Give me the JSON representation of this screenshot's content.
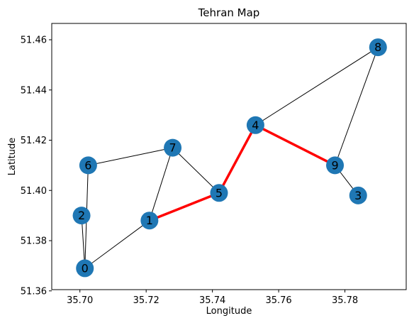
{
  "chart_data": {
    "type": "scatter",
    "title": "Tehran Map",
    "xlabel": "Longitude",
    "ylabel": "Latitude",
    "xlim": [
      35.6915,
      35.7985
    ],
    "ylim": [
      51.3605,
      51.4665
    ],
    "xticks": [
      {
        "value": 35.7,
        "label": "35.70"
      },
      {
        "value": 35.72,
        "label": "35.72"
      },
      {
        "value": 35.74,
        "label": "35.74"
      },
      {
        "value": 35.76,
        "label": "35.76"
      },
      {
        "value": 35.78,
        "label": "35.78"
      }
    ],
    "yticks": [
      {
        "value": 51.36,
        "label": "51.36"
      },
      {
        "value": 51.38,
        "label": "51.38"
      },
      {
        "value": 51.4,
        "label": "51.40"
      },
      {
        "value": 51.42,
        "label": "51.42"
      },
      {
        "value": 51.44,
        "label": "51.44"
      },
      {
        "value": 51.46,
        "label": "51.46"
      }
    ],
    "grid": false,
    "node_color": "#1f77b4",
    "edge_color": "#000000",
    "path_color": "#ff0000",
    "nodes": [
      {
        "label": "0",
        "x": 35.7015,
        "y": 51.369
      },
      {
        "label": "1",
        "x": 35.721,
        "y": 51.388
      },
      {
        "label": "2",
        "x": 35.7005,
        "y": 51.39
      },
      {
        "label": "3",
        "x": 35.784,
        "y": 51.398
      },
      {
        "label": "4",
        "x": 35.753,
        "y": 51.426
      },
      {
        "label": "5",
        "x": 35.742,
        "y": 51.399
      },
      {
        "label": "6",
        "x": 35.7025,
        "y": 51.41
      },
      {
        "label": "7",
        "x": 35.728,
        "y": 51.417
      },
      {
        "label": "8",
        "x": 35.79,
        "y": 51.457
      },
      {
        "label": "9",
        "x": 35.777,
        "y": 51.41
      }
    ],
    "edges": [
      [
        "0",
        "2"
      ],
      [
        "0",
        "6"
      ],
      [
        "0",
        "1"
      ],
      [
        "1",
        "7"
      ],
      [
        "1",
        "5"
      ],
      [
        "6",
        "7"
      ],
      [
        "7",
        "5"
      ],
      [
        "5",
        "4"
      ],
      [
        "4",
        "8"
      ],
      [
        "4",
        "9"
      ],
      [
        "8",
        "9"
      ],
      [
        "9",
        "3"
      ]
    ],
    "highlighted_path": [
      "1",
      "5",
      "4",
      "9"
    ]
  }
}
